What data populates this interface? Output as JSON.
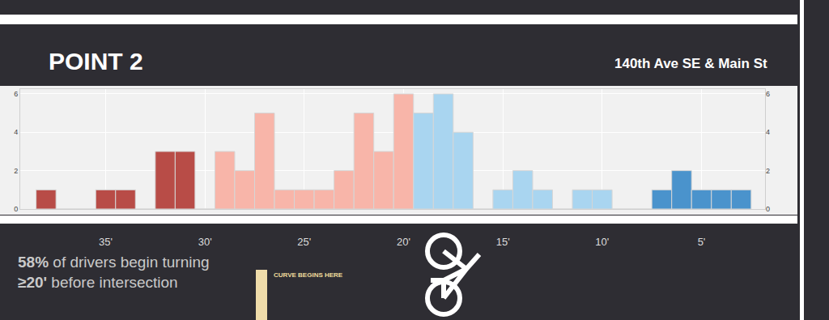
{
  "chart_data": {
    "type": "histogram",
    "title": "POINT 2",
    "subtitle": "140th Ave SE & Main St",
    "bins": [
      38.5,
      37.5,
      36.5,
      35.5,
      34.5,
      33.5,
      32.5,
      31.5,
      30.5,
      29.5,
      28.5,
      27.5,
      26.5,
      25.5,
      24.5,
      23.5,
      22.5,
      21.5,
      20.5,
      19.5,
      18.5,
      17.5,
      16.5,
      15.5,
      14.5,
      13.5,
      12.5,
      11.5,
      10.5,
      9.5,
      8.5,
      7.5,
      6.5,
      5.5,
      4.5,
      3.5,
      2.5
    ],
    "values": [
      1,
      0,
      0,
      1,
      1,
      0,
      3,
      3,
      0,
      3,
      2,
      5,
      1,
      1,
      1,
      2,
      5,
      3,
      6,
      5,
      6,
      4,
      0,
      1,
      2,
      1,
      0,
      1,
      1,
      0,
      0,
      1,
      2,
      1,
      1,
      1
    ],
    "colors": [
      "#b84c47",
      "#b84c47",
      "#b84c47",
      "#b84c47",
      "#b84c47",
      "#b84c47",
      "#b84c47",
      "#b84c47",
      "#f8b5a9",
      "#f8b5a9",
      "#f8b5a9",
      "#f8b5a9",
      "#f8b5a9",
      "#f8b5a9",
      "#f8b5a9",
      "#f8b5a9",
      "#f8b5a9",
      "#f8b5a9",
      "#f8b5a9",
      "#a9d5f0",
      "#a9d5f0",
      "#a9d5f0",
      "#a9d5f0",
      "#a9d5f0",
      "#a9d5f0",
      "#a9d5f0",
      "#a9d5f0",
      "#a9d5f0",
      "#a9d5f0",
      "#4a93cc",
      "#4a93cc",
      "#4a93cc",
      "#4a93cc",
      "#4a93cc",
      "#4a93cc",
      "#4a93cc"
    ],
    "xlim": [
      39.3,
      1.8
    ],
    "xticks": [
      {
        "value": 35,
        "label": "35'"
      },
      {
        "value": 30,
        "label": "30'"
      },
      {
        "value": 25,
        "label": "25'"
      },
      {
        "value": 20,
        "label": "20'"
      },
      {
        "value": 15,
        "label": "15'"
      },
      {
        "value": 10,
        "label": "10'"
      },
      {
        "value": 5,
        "label": "5'"
      }
    ],
    "ylim": [
      0,
      6.25
    ],
    "yticks": [
      0,
      2,
      4,
      6
    ],
    "grid": true,
    "annotations": [
      {
        "text": "58% of drivers begin turning\n≥20' before intersection"
      },
      {
        "text": "CURVE BEGINS HERE"
      }
    ]
  }
}
